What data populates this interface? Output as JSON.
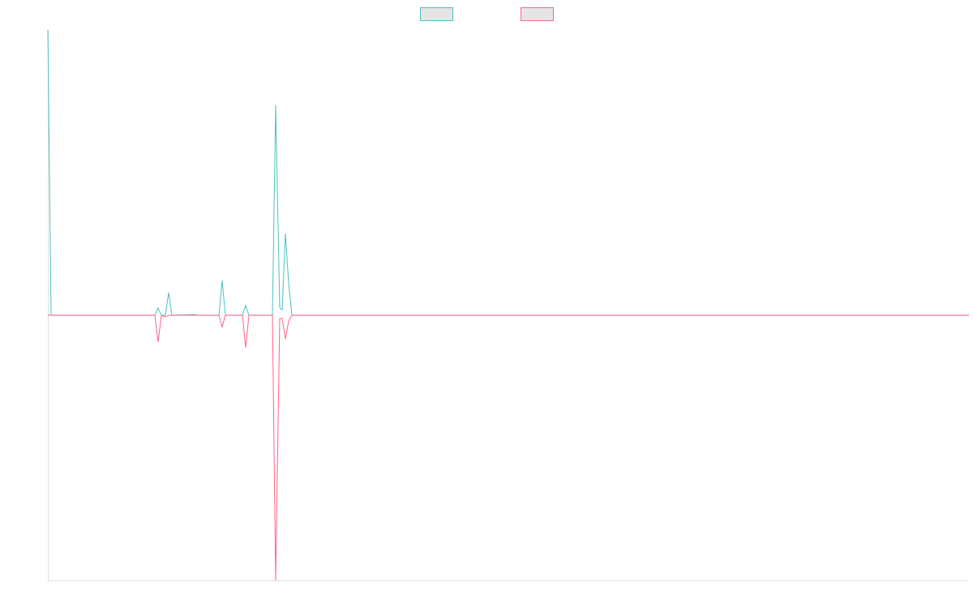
{
  "chart_data": {
    "type": "line",
    "x": [
      0,
      4,
      132,
      136,
      140,
      145,
      149,
      153,
      181,
      185,
      211,
      215,
      219,
      240,
      244,
      248,
      277,
      281,
      286,
      289,
      293,
      297,
      301,
      1136
    ],
    "xlim": [
      0,
      1136
    ],
    "ylim": [
      -100,
      107.6
    ],
    "series": [
      {
        "color": "#4bc0c0",
        "values": [
          107.6,
          0,
          0,
          2.8,
          0,
          0,
          8.6,
          0,
          0.3,
          0,
          0,
          13.1,
          0,
          0,
          3.7,
          0,
          0,
          79.2,
          2.8,
          2.1,
          30.9,
          12,
          0,
          0
        ]
      },
      {
        "color": "#ff6384",
        "values": [
          0,
          0,
          0,
          -10.1,
          0,
          -0.6,
          0,
          0,
          0,
          0,
          0,
          -4.3,
          0,
          0,
          -12.2,
          0,
          0,
          -100,
          -1.2,
          -1.2,
          -8.9,
          -2.1,
          0,
          0
        ]
      }
    ],
    "legend": "top"
  }
}
